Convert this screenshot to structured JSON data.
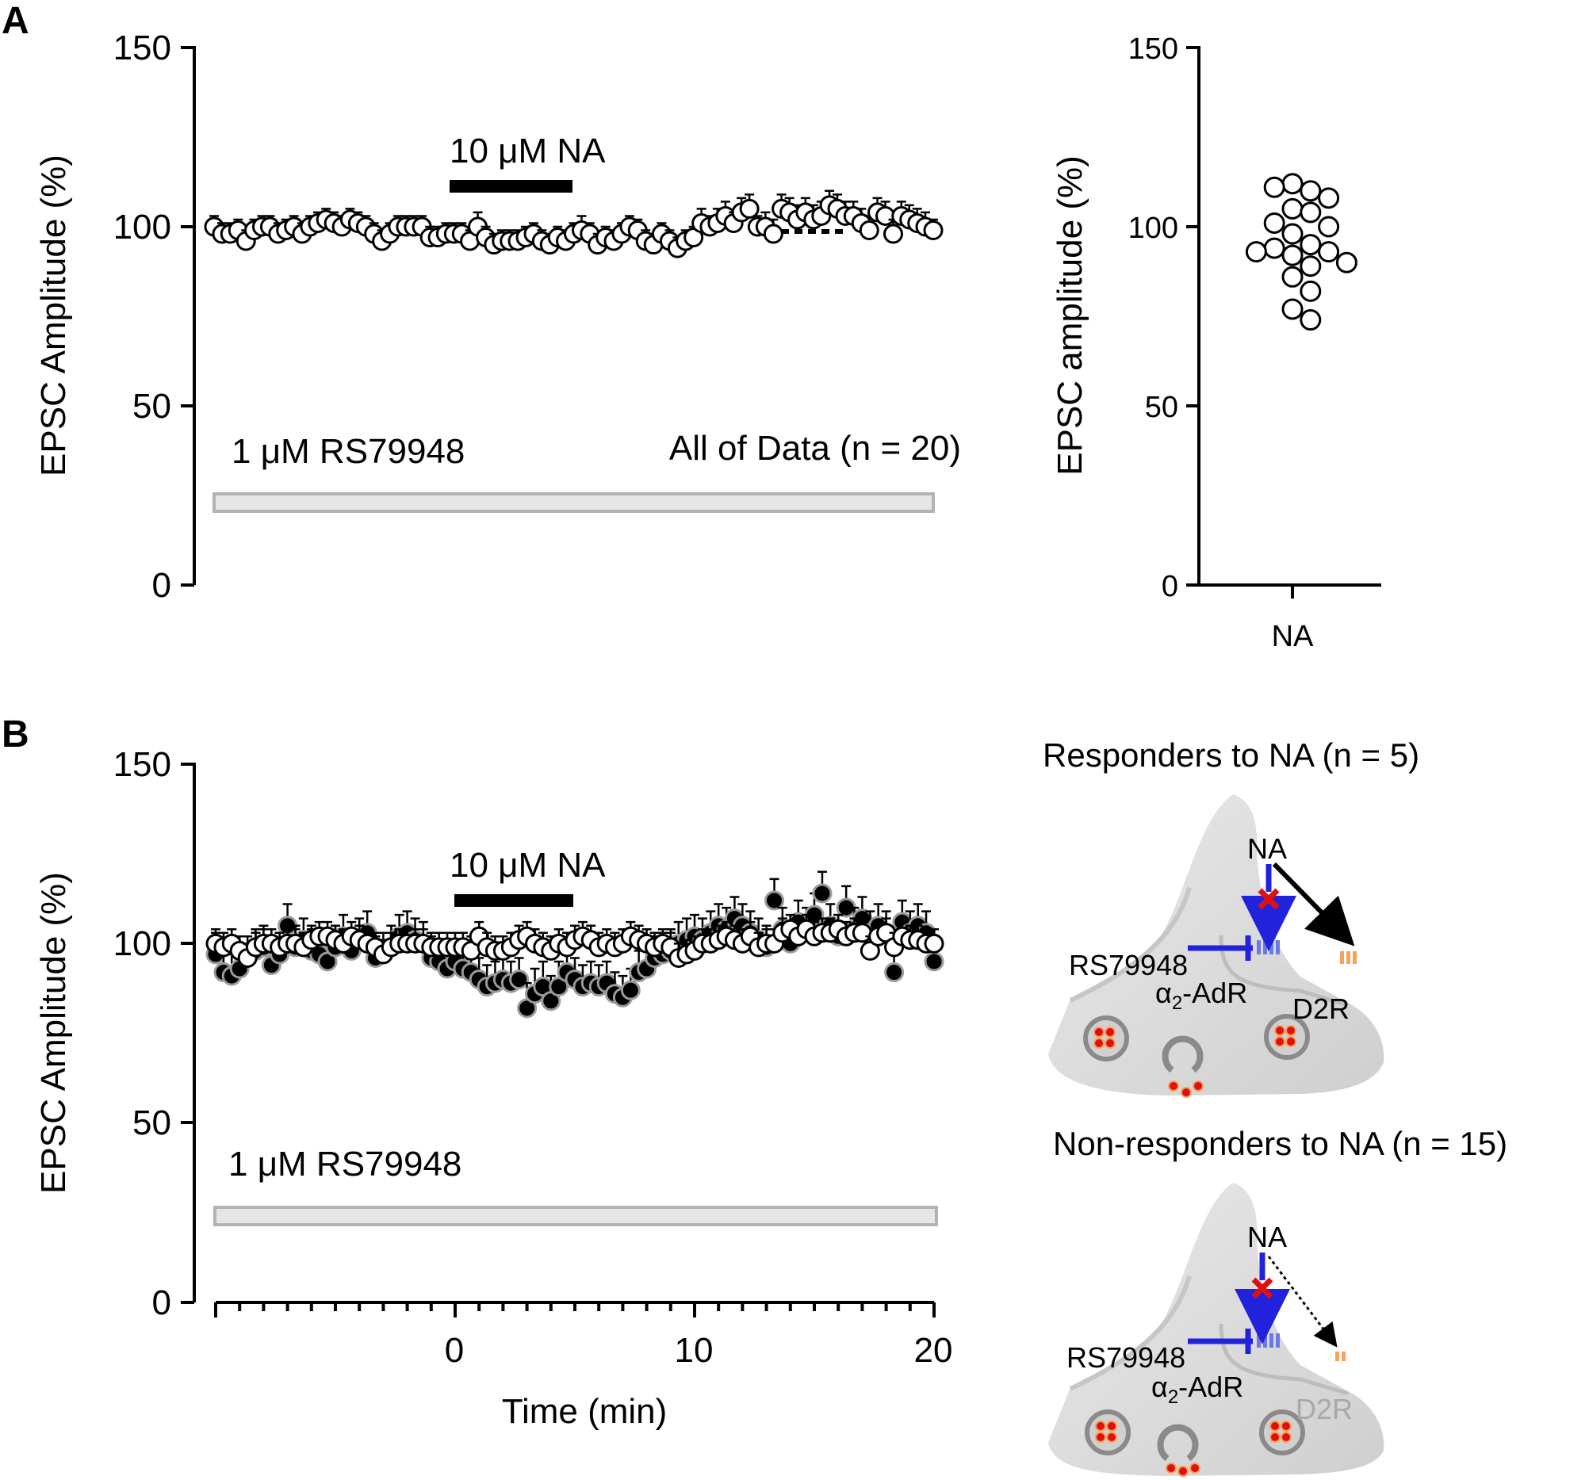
{
  "panels": {
    "a_label": "A",
    "b_label": "B"
  },
  "chart_data": [
    {
      "id": "A-time-course",
      "type": "scatter",
      "title": "All of Data (n = 20)",
      "xlabel": "",
      "ylabel": "EPSC Amplitude (%)",
      "xlim": [
        -10,
        20
      ],
      "ylim": [
        0,
        150
      ],
      "yticks": [
        "0",
        "50",
        "100",
        "150"
      ],
      "annotations": {
        "na_bar": "10 μM NA",
        "drug_bar": "1 μM RS79948",
        "na_range": [
          0,
          5
        ],
        "drug_range": [
          -10,
          20
        ]
      },
      "series": [
        {
          "name": "All of Data (n = 20)",
          "marker": "open-circle",
          "x": [
            -10,
            -9.67,
            -9.33,
            -9,
            -8.67,
            -8.33,
            -8,
            -7.67,
            -7.33,
            -7,
            -6.67,
            -6.33,
            -6,
            -5.67,
            -5.33,
            -5,
            -4.67,
            -4.33,
            -4,
            -3.67,
            -3.33,
            -3,
            -2.67,
            -2.33,
            -2,
            -1.67,
            -1.33,
            -1,
            -0.67,
            -0.33,
            0,
            0.33,
            0.67,
            1,
            1.33,
            1.67,
            2,
            2.33,
            2.67,
            3,
            3.33,
            3.67,
            4,
            4.33,
            4.67,
            5,
            5.33,
            5.67,
            6,
            6.33,
            6.67,
            7,
            7.33,
            7.67,
            8,
            8.33,
            8.67,
            9,
            9.33,
            9.67,
            10,
            10.33,
            10.67,
            11,
            11.33,
            11.67,
            12,
            12.33,
            12.67,
            13,
            13.33,
            13.67,
            14,
            14.33,
            14.67,
            15,
            15.33,
            15.67,
            16,
            16.33,
            16.67,
            17,
            17.33,
            17.67,
            18,
            18.33,
            18.67,
            19,
            19.33,
            19.67,
            20
          ],
          "y": [
            100,
            98,
            98,
            99,
            96,
            99,
            100,
            100,
            98,
            99,
            100,
            98,
            100,
            101,
            102,
            101,
            100,
            102,
            101,
            100,
            98,
            96,
            98,
            100,
            100,
            100,
            100,
            97,
            97,
            98,
            98,
            98,
            96,
            100,
            97,
            95,
            96,
            96,
            96,
            97,
            98,
            96,
            95,
            97,
            96,
            98,
            99,
            98,
            95,
            97,
            96,
            98,
            100,
            99,
            96,
            95,
            98,
            96,
            94,
            96,
            97,
            101,
            100,
            101,
            103,
            101,
            104,
            105,
            100,
            100,
            98,
            105,
            104,
            102,
            104,
            102,
            103,
            106,
            105,
            103,
            103,
            101,
            99,
            104,
            103,
            98,
            103,
            102,
            101,
            100,
            99
          ],
          "err": [
            3,
            3,
            3,
            3,
            3,
            3,
            3,
            3,
            3,
            3,
            3,
            3,
            3,
            3,
            3,
            3,
            3,
            3,
            3,
            3,
            3,
            3,
            3,
            3,
            3,
            3,
            3,
            3,
            3,
            3,
            3,
            3,
            3,
            4,
            3,
            3,
            3,
            3,
            3,
            3,
            3,
            3,
            3,
            3,
            3,
            3,
            4,
            3,
            3,
            3,
            3,
            3,
            3,
            3,
            3,
            3,
            3,
            3,
            3,
            3,
            3,
            4,
            3,
            4,
            4,
            3,
            4,
            4,
            3,
            4,
            4,
            4,
            4,
            4,
            4,
            4,
            4,
            4,
            4,
            4,
            4,
            4,
            4,
            4,
            4,
            4,
            4,
            4,
            4,
            4,
            3
          ]
        }
      ]
    },
    {
      "id": "A-summary",
      "type": "scatter",
      "ylabel": "EPSC amplitude (%)",
      "xlabel": "",
      "categories": [
        "NA"
      ],
      "ylim": [
        0,
        150
      ],
      "yticks": [
        "0",
        "50",
        "100",
        "150"
      ],
      "values": [
        112,
        110,
        111,
        108,
        105,
        104,
        101,
        100,
        98,
        95,
        94,
        93,
        93,
        92,
        90,
        89,
        86,
        82,
        77,
        74
      ]
    },
    {
      "id": "B-time-course",
      "type": "scatter",
      "xlabel": "Time (min)",
      "ylabel": "EPSC Amplitude (%)",
      "xlim": [
        -10,
        20
      ],
      "ylim": [
        0,
        150
      ],
      "xticks": [
        "0",
        "10",
        "20"
      ],
      "yticks": [
        "0",
        "50",
        "100",
        "150"
      ],
      "annotations": {
        "na_bar": "10 μM NA",
        "drug_bar": "1 μM RS79948",
        "na_range": [
          0,
          5
        ],
        "drug_range": [
          -10,
          20
        ]
      },
      "series": [
        {
          "name": "Responders to NA (n = 5)",
          "marker": "filled-circle",
          "x": [
            -10,
            -9.67,
            -9.33,
            -9,
            -8.67,
            -8.33,
            -8,
            -7.67,
            -7.33,
            -7,
            -6.67,
            -6.33,
            -6,
            -5.67,
            -5.33,
            -5,
            -4.67,
            -4.33,
            -4,
            -3.67,
            -3.33,
            -3,
            -2.67,
            -2.33,
            -2,
            -1.67,
            -1.33,
            -1,
            -0.67,
            -0.33,
            0,
            0.33,
            0.67,
            1,
            1.33,
            1.67,
            2,
            2.33,
            2.67,
            3,
            3.33,
            3.67,
            4,
            4.33,
            4.67,
            5,
            5.33,
            5.67,
            6,
            6.33,
            6.67,
            7,
            7.33,
            7.67,
            8,
            8.33,
            8.67,
            9,
            9.33,
            9.67,
            10,
            10.33,
            10.67,
            11,
            11.33,
            11.67,
            12,
            12.33,
            12.67,
            13,
            13.33,
            13.67,
            14,
            14.33,
            14.67,
            15,
            15.33,
            15.67,
            16,
            16.33,
            16.67,
            17,
            17.33,
            17.67,
            18,
            18.33,
            18.67,
            19,
            19.33,
            19.67,
            20
          ],
          "y": [
            97,
            92,
            91,
            93,
            96,
            98,
            99,
            94,
            97,
            105,
            99,
            101,
            98,
            97,
            95,
            99,
            102,
            98,
            101,
            103,
            96,
            97,
            99,
            102,
            103,
            101,
            100,
            96,
            95,
            93,
            95,
            93,
            92,
            90,
            88,
            89,
            90,
            89,
            90,
            82,
            86,
            88,
            84,
            88,
            92,
            90,
            88,
            89,
            88,
            89,
            86,
            85,
            87,
            92,
            93,
            96,
            97,
            98,
            100,
            101,
            102,
            101,
            103,
            105,
            104,
            107,
            105,
            103,
            101,
            99,
            112,
            104,
            100,
            106,
            104,
            108,
            114,
            105,
            102,
            110,
            104,
            107,
            103,
            105,
            103,
            92,
            106,
            103,
            105,
            103,
            95
          ],
          "err": [
            6,
            6,
            6,
            6,
            6,
            6,
            6,
            6,
            6,
            6,
            6,
            6,
            6,
            6,
            6,
            6,
            6,
            6,
            6,
            6,
            6,
            6,
            6,
            6,
            6,
            6,
            6,
            6,
            6,
            6,
            6,
            6,
            6,
            6,
            6,
            6,
            6,
            6,
            6,
            7,
            7,
            7,
            7,
            7,
            7,
            6,
            6,
            6,
            6,
            6,
            6,
            6,
            6,
            6,
            6,
            6,
            6,
            6,
            6,
            6,
            6,
            6,
            6,
            6,
            6,
            6,
            6,
            6,
            6,
            6,
            6,
            6,
            6,
            6,
            6,
            6,
            6,
            6,
            6,
            6,
            6,
            6,
            6,
            6,
            6,
            6,
            6,
            6,
            6,
            6,
            6
          ]
        },
        {
          "name": "Non-responders to NA (n = 15)",
          "marker": "open-circle",
          "x": [
            -10,
            -9.67,
            -9.33,
            -9,
            -8.67,
            -8.33,
            -8,
            -7.67,
            -7.33,
            -7,
            -6.67,
            -6.33,
            -6,
            -5.67,
            -5.33,
            -5,
            -4.67,
            -4.33,
            -4,
            -3.67,
            -3.33,
            -3,
            -2.67,
            -2.33,
            -2,
            -1.67,
            -1.33,
            -1,
            -0.67,
            -0.33,
            0,
            0.33,
            0.67,
            1,
            1.33,
            1.67,
            2,
            2.33,
            2.67,
            3,
            3.33,
            3.67,
            4,
            4.33,
            4.67,
            5,
            5.33,
            5.67,
            6,
            6.33,
            6.67,
            7,
            7.33,
            7.67,
            8,
            8.33,
            8.67,
            9,
            9.33,
            9.67,
            10,
            10.33,
            10.67,
            11,
            11.33,
            11.67,
            12,
            12.33,
            12.67,
            13,
            13.33,
            13.67,
            14,
            14.33,
            14.67,
            15,
            15.33,
            15.67,
            16,
            16.33,
            16.67,
            17,
            17.33,
            17.67,
            18,
            18.33,
            18.67,
            19,
            19.33,
            19.67,
            20
          ],
          "y": [
            100,
            99,
            100,
            98,
            96,
            99,
            100,
            100,
            99,
            100,
            100,
            99,
            101,
            102,
            102,
            101,
            100,
            102,
            101,
            100,
            99,
            97,
            99,
            100,
            100,
            100,
            100,
            99,
            99,
            99,
            99,
            99,
            98,
            102,
            99,
            98,
            98,
            99,
            101,
            102,
            100,
            99,
            98,
            100,
            99,
            101,
            102,
            101,
            99,
            100,
            99,
            100,
            102,
            101,
            100,
            99,
            100,
            99,
            96,
            97,
            98,
            100,
            100,
            101,
            102,
            101,
            100,
            102,
            99,
            100,
            100,
            103,
            104,
            102,
            104,
            102,
            103,
            103,
            104,
            102,
            103,
            103,
            98,
            102,
            103,
            99,
            102,
            101,
            101,
            100,
            100
          ],
          "err": [
            4,
            4,
            4,
            4,
            4,
            4,
            4,
            4,
            4,
            4,
            4,
            4,
            4,
            4,
            4,
            4,
            4,
            4,
            4,
            4,
            4,
            4,
            4,
            4,
            4,
            4,
            4,
            4,
            4,
            4,
            4,
            4,
            4,
            4,
            4,
            4,
            4,
            4,
            4,
            4,
            4,
            4,
            4,
            4,
            4,
            4,
            4,
            4,
            4,
            4,
            4,
            4,
            4,
            4,
            4,
            4,
            4,
            4,
            4,
            4,
            4,
            4,
            4,
            4,
            4,
            4,
            4,
            4,
            4,
            4,
            4,
            4,
            4,
            4,
            4,
            4,
            4,
            4,
            4,
            4,
            4,
            4,
            4,
            4,
            4,
            4,
            4,
            4,
            4,
            4,
            4
          ]
        }
      ]
    }
  ],
  "diagram": {
    "responders_title": "Responders to NA (n = 5)",
    "nonresponders_title": "Non-responders to NA (n = 15)",
    "na_label": "NA",
    "antagonist_label": "RS79948",
    "receptor_alpha": "α",
    "receptor_sub": "2",
    "receptor_suffix": "-AdR",
    "d2r_label": "D2R",
    "colors": {
      "blue": "#2222dd",
      "red": "#e01010",
      "orange": "#f5a25a",
      "gray": "#d9d9d9"
    }
  }
}
